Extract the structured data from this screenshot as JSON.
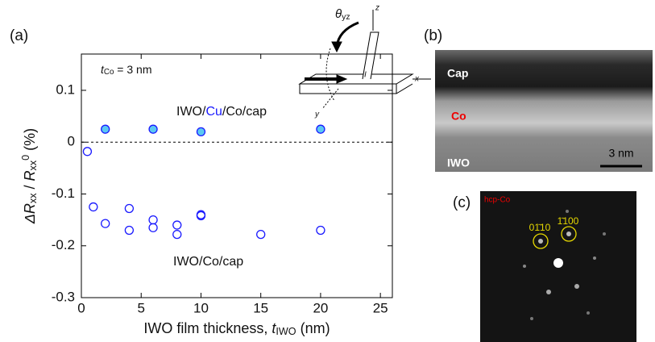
{
  "chart_data": {
    "type": "scatter",
    "x_label": {
      "parts": [
        {
          "text": "IWO film thickness, "
        },
        {
          "text": "t",
          "italic": true
        },
        {
          "text": "IWO",
          "sub": true
        },
        {
          "text": " (nm)"
        }
      ]
    },
    "y_label": {
      "parts": [
        {
          "text": "ΔR",
          "italic": true
        },
        {
          "text": "xx",
          "sub": true
        },
        {
          "text": " / "
        },
        {
          "text": "R",
          "italic": true
        },
        {
          "text": "xx",
          "sub": true
        },
        {
          "text": "0",
          "sup": true
        },
        {
          "text": " (%)"
        }
      ]
    },
    "condition": {
      "parts": [
        {
          "text": "t",
          "italic": true
        },
        {
          "text": "Co",
          "sub": true
        },
        {
          "text": " = 3 nm"
        }
      ]
    },
    "xlim": [
      0,
      26
    ],
    "xticks": [
      0,
      5,
      10,
      15,
      20,
      25
    ],
    "ylim": [
      -0.3,
      0.17
    ],
    "yticks": [
      -0.3,
      -0.2,
      -0.1,
      0,
      0.1
    ],
    "hline": 0,
    "series": [
      {
        "color": "#1a1aff",
        "fill": "#5cc8f2",
        "label": {
          "parts": [
            {
              "text": "IWO/"
            },
            {
              "text": "Cu",
              "color": "#1a1aff"
            },
            {
              "text": "/Co/cap"
            }
          ]
        },
        "x": [
          2,
          6,
          10,
          20
        ],
        "y": [
          0.025,
          0.025,
          0.02,
          0.025
        ]
      },
      {
        "color": "#1a1aff",
        "fill": "none",
        "label": {
          "parts": [
            {
              "text": "IWO/Co/cap"
            }
          ]
        },
        "x": [
          0.5,
          1,
          2,
          4,
          4,
          6,
          6,
          8,
          8,
          10,
          10,
          15,
          20
        ],
        "y": [
          -0.018,
          -0.125,
          -0.157,
          -0.128,
          -0.17,
          -0.15,
          -0.165,
          -0.16,
          -0.178,
          -0.14,
          -0.142,
          -0.178,
          -0.17
        ]
      }
    ]
  },
  "panel_labels": [
    "(a)",
    "(b)",
    "(c)"
  ],
  "inset": {
    "theta": {
      "parts": [
        {
          "text": "θ",
          "italic": true
        },
        {
          "text": "yz",
          "sub": true
        }
      ]
    },
    "z": "z",
    "x": "x",
    "y": "y",
    "current": "I"
  },
  "tem": {
    "cap": "Cap",
    "co": "Co",
    "iwo": "IWO",
    "scale": "3 nm"
  },
  "diffraction": {
    "phase": "hcp-Co",
    "spot1": "01̄10",
    "spot2": "1̄100"
  }
}
